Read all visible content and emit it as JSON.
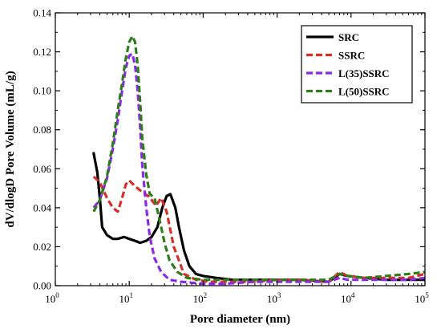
{
  "chart_data": {
    "type": "line",
    "xlabel": "Pore diameter (nm)",
    "ylabel": "dV/dlogD Pore Volume (mL/g)",
    "xscale": "log",
    "xlim": [
      1,
      100000
    ],
    "ylim": [
      0,
      0.14
    ],
    "x_ticks": [
      {
        "value": 1,
        "base": "10",
        "exp": "0"
      },
      {
        "value": 10,
        "base": "10",
        "exp": "1"
      },
      {
        "value": 100,
        "base": "10",
        "exp": "2"
      },
      {
        "value": 1000,
        "base": "10",
        "exp": "3"
      },
      {
        "value": 10000,
        "base": "10",
        "exp": "4"
      },
      {
        "value": 100000,
        "base": "10",
        "exp": "5"
      }
    ],
    "y_ticks": [
      {
        "value": 0,
        "label": "0.00"
      },
      {
        "value": 0.02,
        "label": "0.02"
      },
      {
        "value": 0.04,
        "label": "0.04"
      },
      {
        "value": 0.06,
        "label": "0.06"
      },
      {
        "value": 0.08,
        "label": "0.08"
      },
      {
        "value": 0.1,
        "label": "0.10"
      },
      {
        "value": 0.12,
        "label": "0.12"
      },
      {
        "value": 0.14,
        "label": "0.14"
      }
    ],
    "grid": false,
    "legend_position": "top-right",
    "series": [
      {
        "name": "SRC",
        "color": "#000000",
        "dash": "solid",
        "points": [
          [
            3.3,
            0.068
          ],
          [
            3.7,
            0.058
          ],
          [
            4.0,
            0.045
          ],
          [
            4.3,
            0.03
          ],
          [
            5,
            0.026
          ],
          [
            6,
            0.024
          ],
          [
            7,
            0.024
          ],
          [
            8.5,
            0.025
          ],
          [
            10,
            0.024
          ],
          [
            12,
            0.023
          ],
          [
            14,
            0.022
          ],
          [
            17,
            0.023
          ],
          [
            20,
            0.025
          ],
          [
            24,
            0.03
          ],
          [
            28,
            0.04
          ],
          [
            32,
            0.046
          ],
          [
            36,
            0.047
          ],
          [
            42,
            0.04
          ],
          [
            47,
            0.03
          ],
          [
            55,
            0.018
          ],
          [
            65,
            0.01
          ],
          [
            80,
            0.006
          ],
          [
            100,
            0.005
          ],
          [
            150,
            0.004
          ],
          [
            250,
            0.003
          ],
          [
            500,
            0.003
          ],
          [
            1000,
            0.003
          ],
          [
            2000,
            0.003
          ],
          [
            5000,
            0.002
          ],
          [
            7000,
            0.006
          ],
          [
            9000,
            0.005
          ],
          [
            15000,
            0.004
          ],
          [
            30000,
            0.003
          ],
          [
            60000,
            0.003
          ],
          [
            100000,
            0.003
          ]
        ]
      },
      {
        "name": "SSRC",
        "color": "#d3302a",
        "dash": "dashed",
        "points": [
          [
            3.3,
            0.056
          ],
          [
            4,
            0.053
          ],
          [
            5,
            0.045
          ],
          [
            6,
            0.04
          ],
          [
            7,
            0.038
          ],
          [
            8,
            0.045
          ],
          [
            9,
            0.052
          ],
          [
            10,
            0.054
          ],
          [
            12,
            0.051
          ],
          [
            15,
            0.048
          ],
          [
            18,
            0.046
          ],
          [
            20,
            0.044
          ],
          [
            23,
            0.041
          ],
          [
            27,
            0.045
          ],
          [
            32,
            0.038
          ],
          [
            40,
            0.02
          ],
          [
            55,
            0.006
          ],
          [
            80,
            0.003
          ],
          [
            120,
            0.002
          ],
          [
            250,
            0.002
          ],
          [
            500,
            0.002
          ],
          [
            1000,
            0.003
          ],
          [
            2000,
            0.003
          ],
          [
            5000,
            0.002
          ],
          [
            7000,
            0.007
          ],
          [
            9000,
            0.005
          ],
          [
            15000,
            0.004
          ],
          [
            30000,
            0.004
          ],
          [
            60000,
            0.004
          ],
          [
            100000,
            0.006
          ]
        ]
      },
      {
        "name": "L(35)SSRC",
        "color": "#8a2be2",
        "dash": "dashed",
        "points": [
          [
            3.3,
            0.04
          ],
          [
            4,
            0.044
          ],
          [
            5,
            0.055
          ],
          [
            6,
            0.07
          ],
          [
            7,
            0.085
          ],
          [
            8,
            0.1
          ],
          [
            9,
            0.112
          ],
          [
            10,
            0.118
          ],
          [
            11,
            0.119
          ],
          [
            12,
            0.113
          ],
          [
            13,
            0.1
          ],
          [
            14,
            0.082
          ],
          [
            15,
            0.062
          ],
          [
            17,
            0.04
          ],
          [
            19,
            0.025
          ],
          [
            22,
            0.014
          ],
          [
            27,
            0.007
          ],
          [
            35,
            0.003
          ],
          [
            50,
            0.002
          ],
          [
            100,
            0.001
          ],
          [
            200,
            0.001
          ],
          [
            500,
            0.002
          ],
          [
            1000,
            0.002
          ],
          [
            2000,
            0.002
          ],
          [
            5000,
            0.002
          ],
          [
            7000,
            0.004
          ],
          [
            9000,
            0.003
          ],
          [
            15000,
            0.003
          ],
          [
            30000,
            0.003
          ],
          [
            60000,
            0.003
          ],
          [
            100000,
            0.004
          ]
        ]
      },
      {
        "name": "L(50)SSRC",
        "color": "#2e7d1a",
        "dash": "dashed",
        "points": [
          [
            3.3,
            0.038
          ],
          [
            4,
            0.044
          ],
          [
            5,
            0.056
          ],
          [
            6,
            0.073
          ],
          [
            7,
            0.09
          ],
          [
            8,
            0.104
          ],
          [
            9,
            0.117
          ],
          [
            10,
            0.125
          ],
          [
            11,
            0.128
          ],
          [
            12,
            0.125
          ],
          [
            13,
            0.113
          ],
          [
            14,
            0.095
          ],
          [
            15,
            0.076
          ],
          [
            17,
            0.057
          ],
          [
            19,
            0.047
          ],
          [
            22,
            0.045
          ],
          [
            27,
            0.03
          ],
          [
            30,
            0.022
          ],
          [
            35,
            0.013
          ],
          [
            45,
            0.007
          ],
          [
            60,
            0.004
          ],
          [
            100,
            0.003
          ],
          [
            200,
            0.003
          ],
          [
            500,
            0.003
          ],
          [
            1000,
            0.003
          ],
          [
            2000,
            0.003
          ],
          [
            5000,
            0.003
          ],
          [
            7000,
            0.006
          ],
          [
            9000,
            0.005
          ],
          [
            15000,
            0.004
          ],
          [
            30000,
            0.005
          ],
          [
            60000,
            0.006
          ],
          [
            100000,
            0.007
          ]
        ]
      }
    ]
  }
}
